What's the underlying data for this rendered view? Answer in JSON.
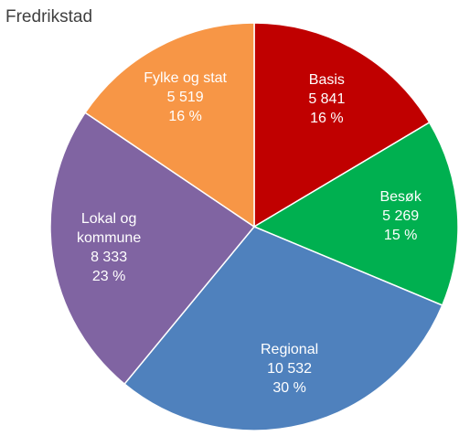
{
  "chart_data": {
    "type": "pie",
    "title": "Fredrikstad",
    "categories": [
      "Basis",
      "Besøk",
      "Regional",
      "Lokal og kommune",
      "Fylke og stat"
    ],
    "values": [
      5841,
      5269,
      10532,
      8333,
      5519
    ],
    "value_labels": [
      "5 841",
      "5 269",
      "10 532",
      "8 333",
      "5 519"
    ],
    "percentages": [
      16,
      15,
      30,
      23,
      16
    ],
    "percentage_labels": [
      "16 %",
      "15 %",
      "30 %",
      "23 %",
      "16 %"
    ],
    "colors": [
      "#c00000",
      "#00b050",
      "#4f81bd",
      "#8064a2",
      "#f79646"
    ]
  }
}
